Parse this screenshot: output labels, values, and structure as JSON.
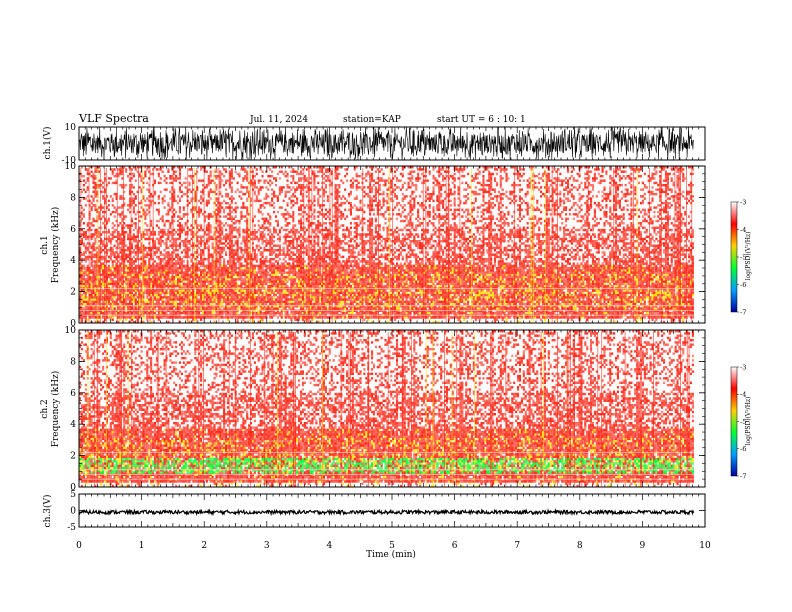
{
  "header": {
    "title": "VLF Spectra",
    "date": "Jul. 11, 2024",
    "station": "station=KAP",
    "start": "start UT =  6 : 10: 1"
  },
  "colors": {
    "background": "#ffffff",
    "axes": "#000000",
    "spectrogram_base": "#ffffff",
    "spectrogram_low": "#ff2a1a",
    "spectrogram_mid": "#ffe000",
    "spectrogram_high": "#00ff33"
  },
  "chart_data": [
    {
      "type": "line",
      "name": "ch1-waveform",
      "ylabel": "ch.1(V)",
      "ylim": [
        -10,
        10
      ],
      "yticks": [
        "10",
        "-10"
      ],
      "xlim": [
        0,
        10
      ],
      "description_values": {
        "amplitude_min": -10,
        "amplitude_max": 10
      }
    },
    {
      "type": "heatmap",
      "name": "ch1-spectrogram",
      "ylabel_top": "ch.1",
      "ylabel": "Frequency (kHz)",
      "ylim": [
        0,
        10
      ],
      "yticks": [
        "0",
        "2",
        "4",
        "6",
        "8",
        "10"
      ],
      "xlim": [
        0,
        10
      ],
      "colorbar": {
        "label": "log(PSD)(V²/Hz)",
        "ticks": [
          "-3",
          "-4",
          "-5",
          "-6",
          "-7"
        ],
        "range": [
          -7,
          -3
        ]
      }
    },
    {
      "type": "heatmap",
      "name": "ch2-spectrogram",
      "ylabel_top": "ch.2",
      "ylabel": "Frequency (kHz)",
      "ylim": [
        0,
        10
      ],
      "yticks": [
        "0",
        "2",
        "4",
        "6",
        "8",
        "10"
      ],
      "xlim": [
        0,
        10
      ],
      "colorbar": {
        "label": "log(PSD)(V²/Hz)",
        "ticks": [
          "-3",
          "-4",
          "-5",
          "-6",
          "-7"
        ],
        "range": [
          -7,
          -3
        ]
      }
    },
    {
      "type": "line",
      "name": "ch3-waveform",
      "ylabel": "ch.3(V)",
      "ylim": [
        -5,
        5
      ],
      "yticks": [
        "5",
        "0",
        "-5"
      ],
      "xlim": [
        0,
        10
      ],
      "description_values": {
        "level": -0.5
      }
    }
  ],
  "xaxis": {
    "label": "Time (min)",
    "ticks": [
      "0",
      "1",
      "2",
      "3",
      "4",
      "5",
      "6",
      "7",
      "8",
      "9",
      "10"
    ]
  }
}
